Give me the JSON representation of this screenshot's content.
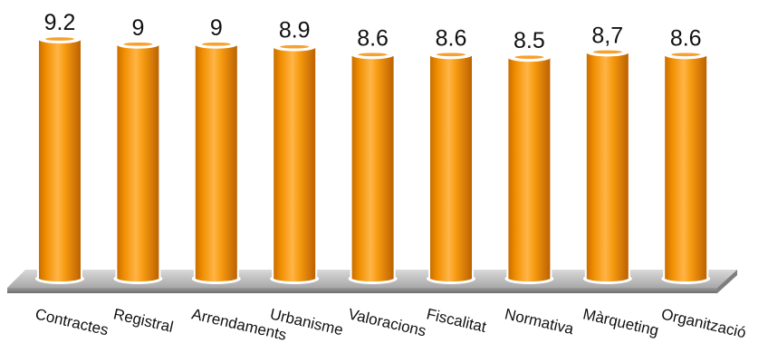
{
  "chart_data": {
    "type": "bar",
    "style": "3d-cylinder",
    "categories": [
      "Contractes",
      "Registral",
      "Arrendaments",
      "Urbanisme",
      "Valoracions",
      "Fiscalitat",
      "Normativa",
      "Màrqueting",
      "Organització"
    ],
    "values": [
      9.2,
      9,
      9,
      8.9,
      8.6,
      8.6,
      8.5,
      8.7,
      8.6
    ],
    "data_labels": [
      "9.2",
      "9",
      "9",
      "8.9",
      "8.6",
      "8.6",
      "8.5",
      "8,7",
      "8.6"
    ],
    "title": "",
    "xlabel": "",
    "ylabel": "",
    "grid": false,
    "legend": "none",
    "colors": {
      "bar": "#F59A0E",
      "bar_dark": "#C86E00",
      "bar_light": "#FFC266",
      "floor": "#BDBDBD",
      "floor_dark": "#8A8A8A"
    }
  }
}
